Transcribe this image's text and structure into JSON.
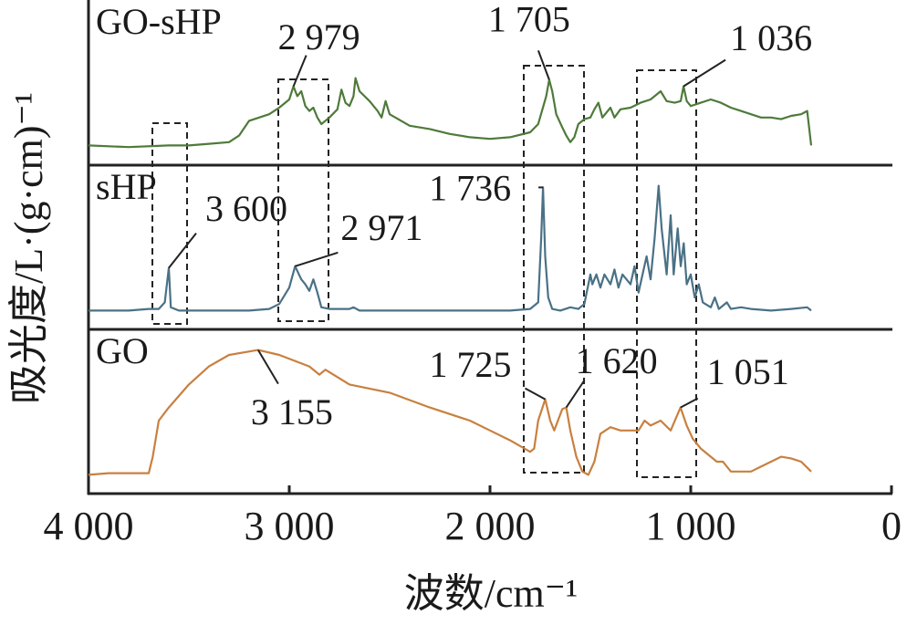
{
  "chart_data": {
    "type": "line",
    "xlabel": "波数/cm⁻¹",
    "ylabel": "吸光度/L·(g·cm)⁻¹",
    "xlim": [
      4000,
      0
    ],
    "xticks": [
      {
        "value": 4000,
        "label": "4 000"
      },
      {
        "value": 3000,
        "label": "3 000"
      },
      {
        "value": 2000,
        "label": "2 000"
      },
      {
        "value": 1000,
        "label": "1 000"
      },
      0
    ],
    "panels": [
      {
        "ylim": [
          0,
          100
        ],
        "series": [
          {
            "name": "GO-sHP",
            "color": "#4e7a3a",
            "x": [
              4000,
              3800,
              3600,
              3500,
              3400,
              3300,
              3250,
              3200,
              3100,
              3050,
              3000,
              2979,
              2960,
              2940,
              2920,
              2900,
              2880,
              2860,
              2840,
              2800,
              2760,
              2740,
              2720,
              2700,
              2680,
              2670,
              2650,
              2600,
              2560,
              2540,
              2520,
              2500,
              2400,
              2300,
              2200,
              2100,
              2000,
              1900,
              1800,
              1760,
              1720,
              1705,
              1690,
              1670,
              1640,
              1620,
              1600,
              1580,
              1560,
              1530,
              1500,
              1480,
              1460,
              1440,
              1400,
              1380,
              1350,
              1300,
              1250,
              1200,
              1150,
              1120,
              1080,
              1050,
              1036,
              1020,
              1000,
              950,
              900,
              850,
              800,
              750,
              700,
              650,
              600,
              550,
              500,
              450,
              420,
              400
            ],
            "values": [
              12,
              11,
              12,
              12,
              13,
              14,
              18,
              27,
              31,
              35,
              40,
              48,
              42,
              45,
              36,
              33,
              35,
              29,
              25,
              29,
              34,
              46,
              38,
              36,
              42,
              53,
              45,
              39,
              33,
              29,
              39,
              31,
              24,
              22,
              19,
              17,
              16,
              17,
              20,
              25,
              42,
              52,
              45,
              31,
              23,
              18,
              14,
              17,
              25,
              28,
              29,
              34,
              38,
              29,
              35,
              29,
              34,
              35,
              38,
              40,
              45,
              39,
              38,
              39,
              48,
              39,
              36,
              38,
              40,
              38,
              35,
              33,
              31,
              29,
              29,
              28,
              30,
              31,
              33,
              12
            ]
          }
        ],
        "annotations": [
          {
            "label": "2 979",
            "x": 2979,
            "y": 48
          },
          {
            "label": "1 705",
            "x": 1705,
            "y": 52
          },
          {
            "label": "1 036",
            "x": 1036,
            "y": 48
          }
        ]
      },
      {
        "ylim": [
          0,
          100
        ],
        "series": [
          {
            "name": "sHP",
            "color": "#4a7186",
            "x": [
              4000,
              3800,
              3700,
              3650,
              3620,
              3600,
              3590,
              3550,
              3400,
              3200,
              3100,
              3050,
              3000,
              2971,
              2940,
              2920,
              2900,
              2880,
              2860,
              2840,
              2800,
              2700,
              2680,
              2650,
              2500,
              2200,
              2000,
              1900,
              1800,
              1760,
              1745,
              1736,
              1725,
              1710,
              1690,
              1650,
              1600,
              1560,
              1530,
              1500,
              1490,
              1470,
              1450,
              1430,
              1400,
              1380,
              1360,
              1340,
              1300,
              1280,
              1260,
              1240,
              1220,
              1200,
              1180,
              1160,
              1145,
              1120,
              1100,
              1085,
              1065,
              1050,
              1035,
              1020,
              1000,
              980,
              960,
              940,
              900,
              880,
              860,
              820,
              800,
              750,
              700,
              600,
              500,
              420,
              400
            ],
            "values": [
              12,
              12,
              13,
              13,
              17,
              38,
              14,
              12,
              12,
              12,
              13,
              16,
              26,
              39,
              31,
              28,
              24,
              31,
              23,
              14,
              13,
              13,
              14,
              12,
              12,
              12,
              12,
              12,
              13,
              17,
              56,
              87,
              45,
              20,
              13,
              12,
              14,
              13,
              16,
              34,
              28,
              34,
              26,
              34,
              28,
              37,
              26,
              34,
              28,
              39,
              23,
              34,
              45,
              31,
              56,
              88,
              62,
              34,
              70,
              34,
              62,
              39,
              53,
              28,
              34,
              20,
              28,
              17,
              14,
              20,
              13,
              17,
              13,
              14,
              13,
              12,
              13,
              14,
              12
            ]
          }
        ],
        "annotations": [
          {
            "label": "3 600",
            "x": 3600,
            "y": 38
          },
          {
            "label": "2 971",
            "x": 2971,
            "y": 39
          },
          {
            "label": "1 736",
            "x": 1736,
            "y": 87
          }
        ]
      },
      {
        "ylim": [
          0,
          100
        ],
        "series": [
          {
            "name": "GO",
            "color": "#c8803f",
            "x": [
              4000,
              3900,
              3700,
              3680,
              3650,
              3600,
              3500,
              3400,
              3300,
              3155,
              3050,
              2900,
              2850,
              2820,
              2700,
              2500,
              2300,
              2100,
              2000,
              1900,
              1800,
              1780,
              1760,
              1725,
              1700,
              1680,
              1640,
              1620,
              1600,
              1570,
              1540,
              1510,
              1480,
              1450,
              1400,
              1350,
              1300,
              1260,
              1230,
              1200,
              1150,
              1100,
              1051,
              1020,
              990,
              950,
              900,
              870,
              840,
              800,
              760,
              700,
              650,
              600,
              550,
              500,
              450,
              400
            ],
            "values": [
              12,
              13,
              13,
              23,
              45,
              53,
              67,
              78,
              85,
              88,
              85,
              78,
              73,
              76,
              67,
              62,
              53,
              45,
              39,
              33,
              26,
              28,
              45,
              58,
              45,
              39,
              52,
              53,
              39,
              23,
              14,
              12,
              20,
              37,
              41,
              39,
              39,
              39,
              45,
              42,
              45,
              39,
              53,
              42,
              34,
              28,
              23,
              20,
              20,
              14,
              14,
              14,
              17,
              20,
              23,
              22,
              20,
              14
            ]
          }
        ],
        "annotations": [
          {
            "label": "3 155",
            "x": 3155,
            "y": 88
          },
          {
            "label": "1 725",
            "x": 1725,
            "y": 58
          },
          {
            "label": "1 620",
            "x": 1620,
            "y": 53
          },
          {
            "label": "1 051",
            "x": 1051,
            "y": 53
          }
        ]
      }
    ]
  }
}
